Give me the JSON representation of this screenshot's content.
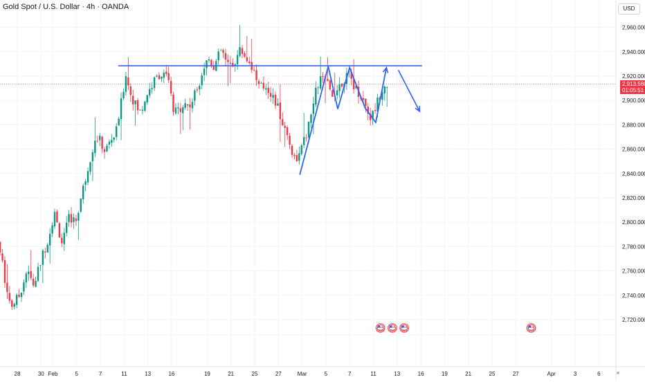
{
  "header": {
    "title": "Gold Spot / U.S. Dollar · 4h · OANDA",
    "unit": "USD"
  },
  "price_tag": {
    "price": "2,913.560",
    "countdown": "01:05:51",
    "value": 2913.56
  },
  "colors": {
    "up": "#089981",
    "down": "#f23645",
    "drawing": "#2962ff",
    "grid": "#f0f3fa",
    "axis_text": "#131722"
  },
  "events": {
    "icon": "us-flag-icon",
    "label": "US"
  },
  "chart_data": {
    "type": "candlestick",
    "title": "Gold Spot / U.S. Dollar · 4h · OANDA",
    "ylim": [
      2705,
      2972
    ],
    "yticks": [
      2720,
      2740,
      2760,
      2780,
      2800,
      2820,
      2840,
      2860,
      2880,
      2900,
      2920,
      2940,
      2960
    ],
    "ytick_labels": [
      "2,720.000",
      "2,740.000",
      "2,760.000",
      "2,780.000",
      "2,800.000",
      "2,820.000",
      "2,840.000",
      "2,860.000",
      "2,880.000",
      "2,900.000",
      "2,920.000",
      "2,940.000",
      "2,960.000"
    ],
    "xticks": [
      {
        "label": "28",
        "t": 0
      },
      {
        "label": "30",
        "t": 2
      },
      {
        "label": "Feb",
        "t": 3
      },
      {
        "label": "5",
        "t": 5
      },
      {
        "label": "7",
        "t": 7
      },
      {
        "label": "11",
        "t": 9
      },
      {
        "label": "13",
        "t": 11
      },
      {
        "label": "16",
        "t": 13
      },
      {
        "label": "19",
        "t": 16
      },
      {
        "label": "21",
        "t": 18
      },
      {
        "label": "25",
        "t": 20
      },
      {
        "label": "27",
        "t": 22
      },
      {
        "label": "Mar",
        "t": 24
      },
      {
        "label": "5",
        "t": 26
      },
      {
        "label": "7",
        "t": 28
      },
      {
        "label": "11",
        "t": 30
      },
      {
        "label": "13",
        "t": 32
      },
      {
        "label": "16",
        "t": 34
      },
      {
        "label": "19",
        "t": 36
      },
      {
        "label": "21",
        "t": 38
      },
      {
        "label": "25",
        "t": 40
      },
      {
        "label": "27",
        "t": 42
      },
      {
        "label": "Apr",
        "t": 45
      },
      {
        "label": "3",
        "t": 47
      },
      {
        "label": "6",
        "t": 49
      }
    ],
    "trend_anchors": [
      [
        -1.5,
        2786
      ],
      [
        -1.1,
        2768
      ],
      [
        -0.6,
        2740
      ],
      [
        -0.3,
        2732
      ],
      [
        0.3,
        2738
      ],
      [
        1.0,
        2760
      ],
      [
        1.6,
        2748
      ],
      [
        2.3,
        2772
      ],
      [
        2.9,
        2790
      ],
      [
        3.3,
        2808
      ],
      [
        4.0,
        2782
      ],
      [
        4.6,
        2805
      ],
      [
        5.1,
        2800
      ],
      [
        5.8,
        2830
      ],
      [
        6.5,
        2860
      ],
      [
        7.0,
        2870
      ],
      [
        7.6,
        2858
      ],
      [
        8.1,
        2868
      ],
      [
        8.5,
        2872
      ],
      [
        8.9,
        2895
      ],
      [
        9.1,
        2905
      ],
      [
        9.3,
        2925
      ],
      [
        9.6,
        2910
      ],
      [
        10.2,
        2895
      ],
      [
        10.6,
        2890
      ],
      [
        11.1,
        2905
      ],
      [
        11.7,
        2915
      ],
      [
        12.2,
        2922
      ],
      [
        12.6,
        2920
      ],
      [
        12.9,
        2918
      ],
      [
        13.4,
        2888
      ],
      [
        14.2,
        2898
      ],
      [
        14.7,
        2895
      ],
      [
        15.3,
        2908
      ],
      [
        15.8,
        2925
      ],
      [
        16.3,
        2935
      ],
      [
        16.8,
        2928
      ],
      [
        17.4,
        2942
      ],
      [
        17.9,
        2928
      ],
      [
        18.4,
        2930
      ],
      [
        19.0,
        2942
      ],
      [
        19.5,
        2935
      ],
      [
        20.0,
        2928
      ],
      [
        20.6,
        2910
      ],
      [
        21.2,
        2912
      ],
      [
        21.6,
        2905
      ],
      [
        22.1,
        2895
      ],
      [
        22.6,
        2880
      ],
      [
        23.1,
        2868
      ],
      [
        23.5,
        2852
      ],
      [
        24.0,
        2855
      ],
      [
        24.4,
        2868
      ],
      [
        24.8,
        2880
      ],
      [
        25.3,
        2905
      ],
      [
        25.7,
        2918
      ],
      [
        26.2,
        2915
      ],
      [
        26.7,
        2905
      ],
      [
        27.2,
        2910
      ],
      [
        27.7,
        2918
      ],
      [
        28.2,
        2920
      ],
      [
        28.7,
        2910
      ],
      [
        29.1,
        2905
      ],
      [
        29.6,
        2895
      ],
      [
        30.0,
        2885
      ],
      [
        30.5,
        2898
      ],
      [
        31.0,
        2912
      ],
      [
        31.3,
        2914
      ]
    ],
    "resistance_line": {
      "t1": 8.5,
      "t2": 34.1,
      "price": 2928.5
    },
    "pattern_path": [
      [
        23.8,
        2839
      ],
      [
        26.2,
        2928
      ],
      [
        27.0,
        2893
      ],
      [
        28.0,
        2927
      ],
      [
        29.3,
        2894
      ],
      [
        30.2,
        2882
      ],
      [
        31.1,
        2927
      ]
    ],
    "projection": [
      [
        32.1,
        2925
      ],
      [
        33.9,
        2891
      ]
    ],
    "last_price_line": 2913.56,
    "event_markers": [
      30.6,
      31.6,
      32.6,
      43.3
    ]
  }
}
